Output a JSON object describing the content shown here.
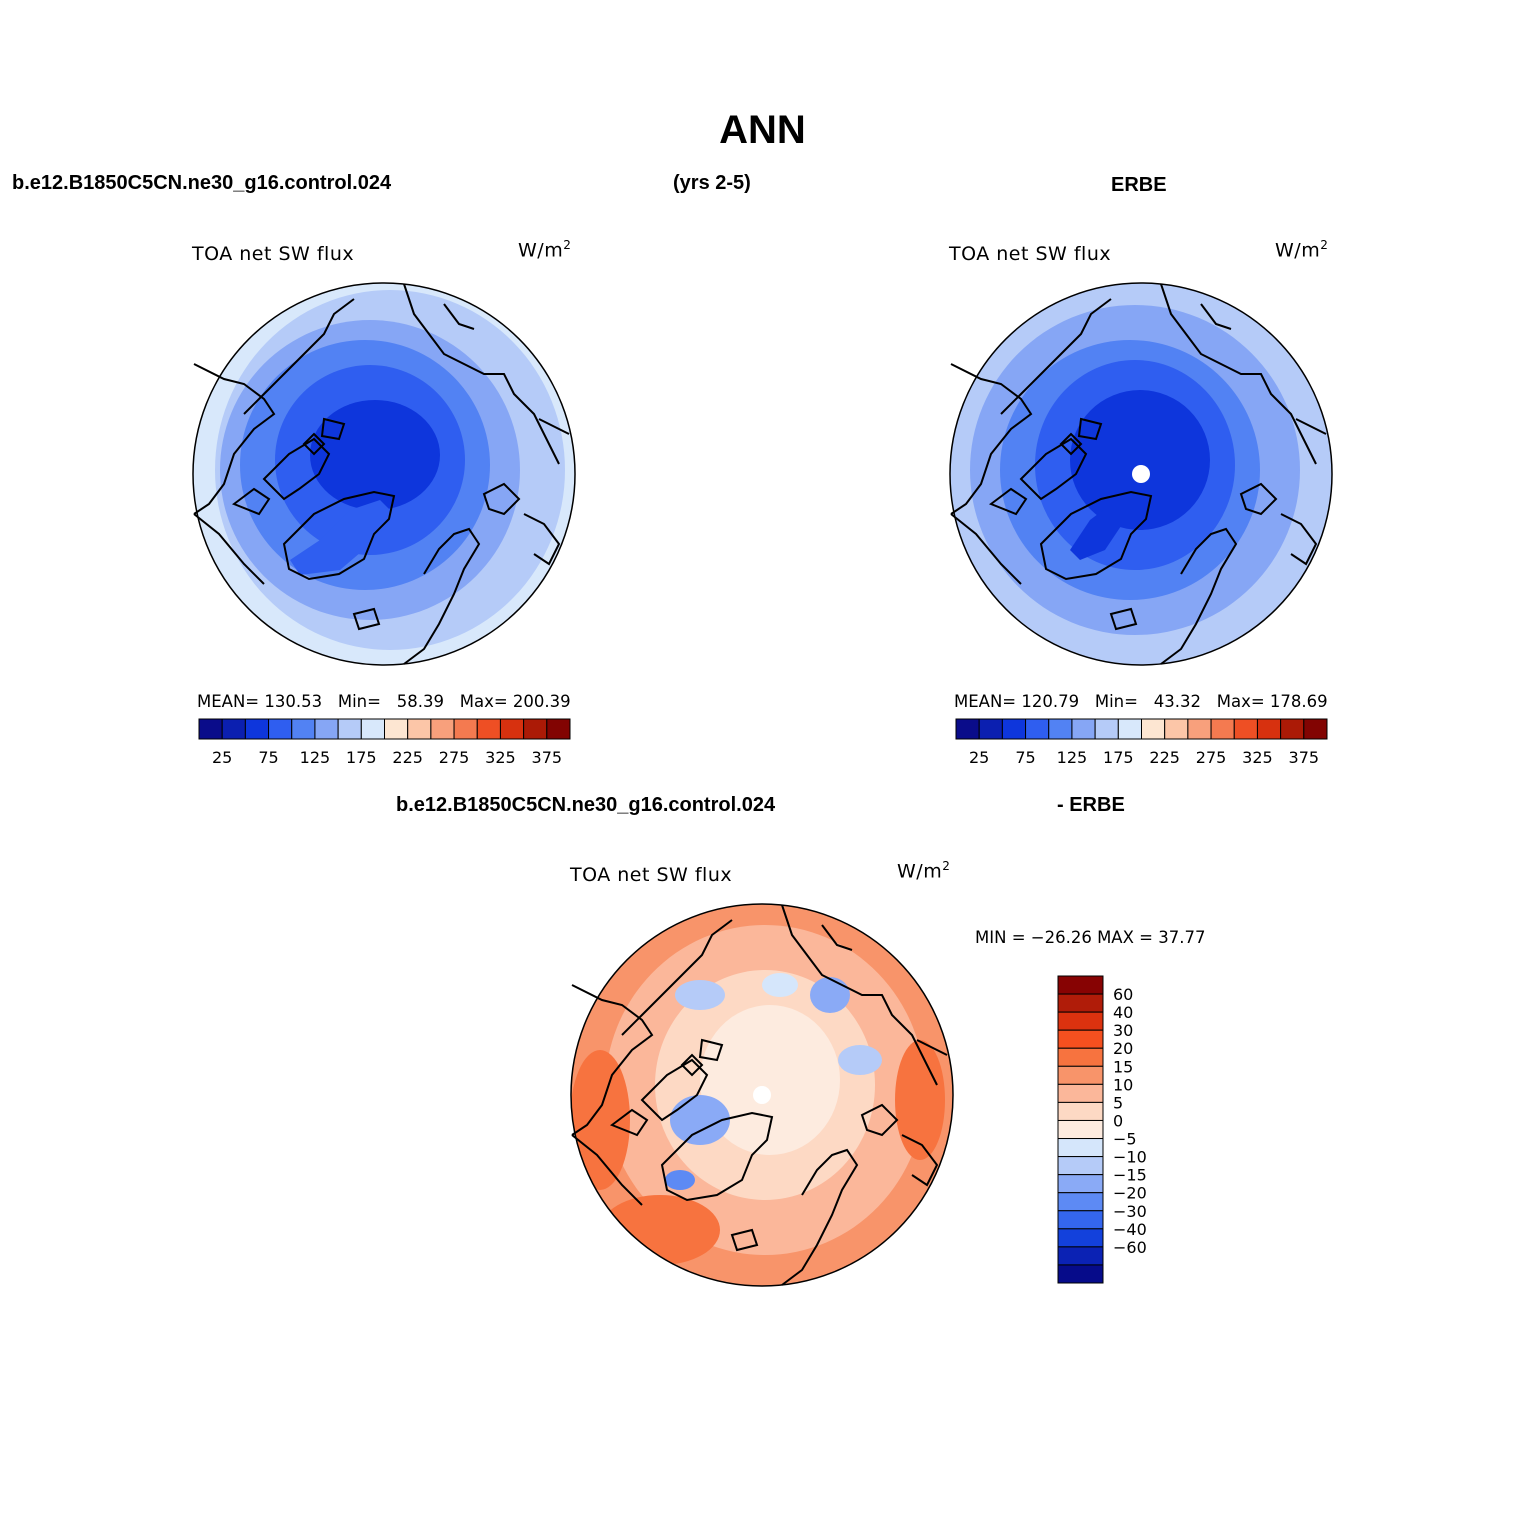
{
  "header": {
    "title": "ANN",
    "case_name": "b.e12.B1850C5CN.ne30_g16.control.024",
    "years": "(yrs 2-5)",
    "obs_name": "ERBE",
    "diff_case_name": "b.e12.B1850C5CN.ne30_g16.control.024",
    "diff_obs_name": "- ERBE"
  },
  "panels": {
    "model": {
      "variable": "TOA net SW flux",
      "units": "W/m",
      "units_exp": "2",
      "mean_label": "MEAN=",
      "mean": "130.53",
      "min_label": "Min=",
      "min": "58.39",
      "max_label": "Max=",
      "max": "200.39"
    },
    "obs": {
      "variable": "TOA net SW flux",
      "units": "W/m",
      "units_exp": "2",
      "mean_label": "MEAN=",
      "mean": "120.79",
      "min_label": "Min=",
      "min": "43.32",
      "max_label": "Max=",
      "max": "178.69"
    },
    "diff": {
      "variable": "TOA net SW flux",
      "units": "W/m",
      "units_exp": "2",
      "minmax_text": "MIN = −26.26 MAX =   37.77"
    }
  },
  "colorbar_abs": {
    "colors": [
      "#0a0c8a",
      "#0b1fb0",
      "#0e36dc",
      "#2f5ef0",
      "#5282f3",
      "#86a6f5",
      "#b5cbf8",
      "#d8e8fb",
      "#fde6d2",
      "#fcc6a8",
      "#f8a07c",
      "#f47a50",
      "#ee4f24",
      "#d7310f",
      "#ab1a06",
      "#820402"
    ],
    "tick_labels": [
      "25",
      "75",
      "125",
      "175",
      "225",
      "275",
      "325",
      "375"
    ]
  },
  "colorbar_diff": {
    "colors": [
      "#870303",
      "#b01c09",
      "#dc320f",
      "#f5501f",
      "#f7733f",
      "#f8946a",
      "#fbb79a",
      "#fdd9c4",
      "#fdebdf",
      "#d5e6fb",
      "#b5cbf8",
      "#8aaaf6",
      "#5d8af4",
      "#3466ee",
      "#1341dc",
      "#0b22b4",
      "#060b8a"
    ],
    "tick_labels": [
      "60",
      "40",
      "30",
      "20",
      "15",
      "10",
      "5",
      "0",
      "−5",
      "−10",
      "−15",
      "−20",
      "−30",
      "−40",
      "−60"
    ]
  },
  "chart_data": [
    {
      "type": "heatmap",
      "title": "TOA net SW flux",
      "units": "W/m2",
      "subtitle": "b.e12.B1850C5CN.ne30_g16.control.024 (yrs 2-5)",
      "projection": "north polar stereographic",
      "mean": 130.53,
      "min": 58.39,
      "max": 200.39,
      "contour_levels": [
        25,
        50,
        75,
        100,
        125,
        150,
        175,
        200,
        225,
        250,
        275,
        300,
        325,
        350,
        375
      ]
    },
    {
      "type": "heatmap",
      "title": "TOA net SW flux",
      "units": "W/m2",
      "subtitle": "ERBE",
      "projection": "north polar stereographic",
      "mean": 120.79,
      "min": 43.32,
      "max": 178.69,
      "contour_levels": [
        25,
        50,
        75,
        100,
        125,
        150,
        175,
        200,
        225,
        250,
        275,
        300,
        325,
        350,
        375
      ]
    },
    {
      "type": "heatmap",
      "title": "TOA net SW flux",
      "units": "W/m2",
      "subtitle": "b.e12.B1850C5CN.ne30_g16.control.024 - ERBE",
      "projection": "north polar stereographic",
      "min": -26.26,
      "max": 37.77,
      "contour_levels": [
        -60,
        -40,
        -30,
        -20,
        -15,
        -10,
        -5,
        0,
        5,
        10,
        15,
        20,
        30,
        40,
        60
      ]
    }
  ]
}
